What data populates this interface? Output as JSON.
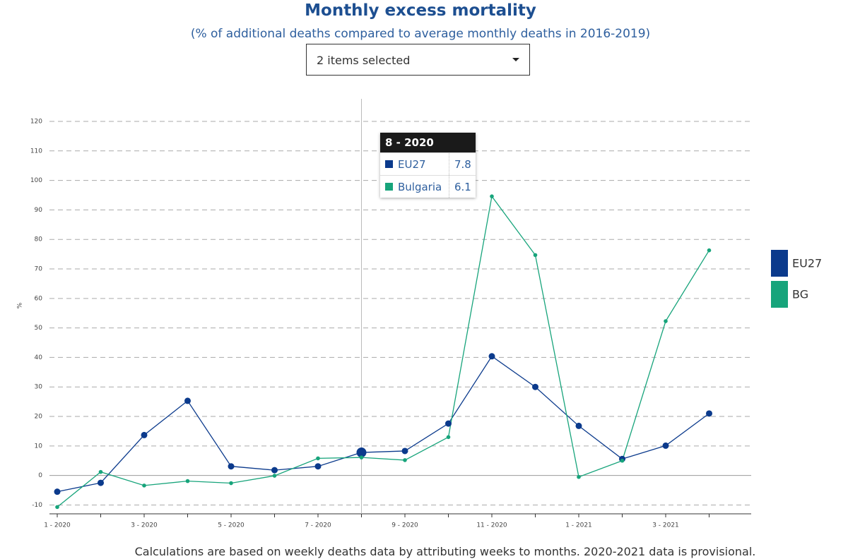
{
  "chart_data": {
    "type": "line",
    "title": "Monthly excess mortality",
    "subtitle": "(% of additional deaths compared to average monthly deaths in 2016-2019)",
    "dropdown": "2 items selected",
    "y_label": "%",
    "categories": [
      "1 - 2020",
      null,
      "3 - 2020",
      null,
      "5 - 2020",
      null,
      "7 - 2020",
      null,
      "9 - 2020",
      null,
      "11 - 2020",
      null,
      "1 - 2021",
      null,
      "3 - 2021",
      null
    ],
    "series": [
      {
        "name": "EU27",
        "color": "#0b3a8c",
        "values": [
          -5.5,
          -2.5,
          13.7,
          25.3,
          3.1,
          1.8,
          3.1,
          7.8,
          8.3,
          17.6,
          40.4,
          30.0,
          16.8,
          5.6,
          10.1,
          21.0
        ]
      },
      {
        "name": "BG",
        "color": "#17a47b",
        "values": [
          -10.7,
          1.2,
          -3.4,
          -1.9,
          -2.6,
          -0.1,
          5.8,
          6.1,
          5.2,
          13.0,
          94.6,
          74.7,
          -0.5,
          5.0,
          52.3,
          76.3
        ]
      }
    ],
    "ylim": [
      -13,
      120
    ],
    "yticks": [
      -10,
      0,
      10,
      20,
      30,
      40,
      50,
      60,
      70,
      80,
      90,
      100,
      110,
      120
    ],
    "grid": true,
    "legend": "right",
    "tooltip": {
      "title": "8 - 2020",
      "rows": [
        {
          "name": "EU27",
          "color": "#0b3a8c",
          "value": 7.8
        },
        {
          "name": "Bulgaria",
          "color": "#17a47b",
          "value": 6.1
        }
      ]
    },
    "footnote": "Calculations are based on weekly deaths data by attributing weeks to months. 2020-2021 data is provisional."
  }
}
